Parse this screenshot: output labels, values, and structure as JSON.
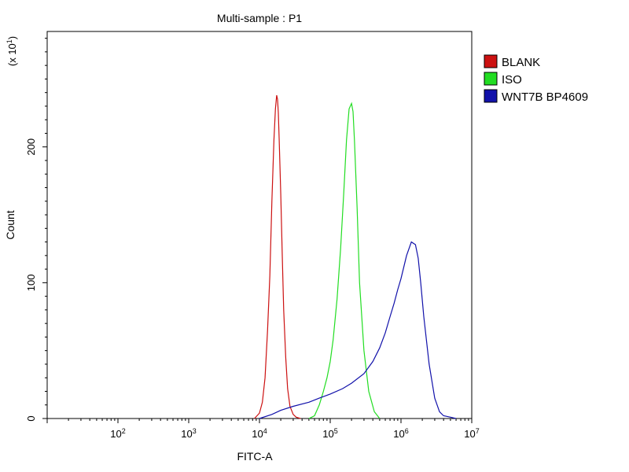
{
  "chart_data": {
    "type": "line",
    "title": "Multi-sample : P1",
    "xlabel": "FITC-A",
    "ylabel": "Count",
    "y_multiplier_label": "(x 10",
    "y_multiplier_exp": "1",
    "y_multiplier_close": ")",
    "xscale": "log",
    "xlim": [
      10,
      10000000
    ],
    "ylim": [
      0,
      285
    ],
    "x_ticks": [
      {
        "base": "10",
        "exp": "2",
        "value": 100
      },
      {
        "base": "10",
        "exp": "3",
        "value": 1000
      },
      {
        "base": "10",
        "exp": "4",
        "value": 10000
      },
      {
        "base": "10",
        "exp": "5",
        "value": 100000
      },
      {
        "base": "10",
        "exp": "6",
        "value": 1000000
      },
      {
        "base": "10",
        "exp": "7",
        "value": 10000000
      }
    ],
    "y_ticks": [
      {
        "label": "0",
        "value": 0
      },
      {
        "label": "100",
        "value": 100
      },
      {
        "label": "200",
        "value": 200
      }
    ],
    "legend_position": "right",
    "series": [
      {
        "name": "BLANK",
        "color": "#cc1111",
        "x": [
          8500,
          10000,
          11000,
          12000,
          13000,
          14000,
          15000,
          16000,
          16800,
          17500,
          18000,
          18500,
          19000,
          20000,
          21000,
          22000,
          23500,
          25000,
          27000,
          30000,
          33000,
          38000
        ],
        "y": [
          0,
          4,
          12,
          30,
          65,
          105,
          160,
          205,
          228,
          238,
          235,
          225,
          205,
          165,
          120,
          80,
          45,
          22,
          9,
          3,
          1,
          0
        ]
      },
      {
        "name": "ISO",
        "color": "#22dd22",
        "x": [
          50000,
          60000,
          70000,
          80000,
          90000,
          100000,
          110000,
          125000,
          140000,
          155000,
          170000,
          185000,
          200000,
          210000,
          220000,
          240000,
          260000,
          300000,
          350000,
          420000,
          500000
        ],
        "y": [
          0,
          2,
          10,
          20,
          30,
          42,
          58,
          88,
          125,
          165,
          205,
          228,
          232,
          226,
          205,
          155,
          100,
          50,
          20,
          5,
          0
        ]
      },
      {
        "name": "WNT7B BP4609",
        "color": "#1111aa",
        "x": [
          10000,
          15000,
          20000,
          30000,
          50000,
          70000,
          100000,
          150000,
          200000,
          300000,
          400000,
          500000,
          600000,
          700000,
          800000,
          900000,
          1000000,
          1200000,
          1400000,
          1600000,
          1750000,
          1900000,
          2100000,
          2500000,
          3000000,
          3500000,
          4000000,
          5000000,
          6000000
        ],
        "y": [
          0,
          3,
          6,
          9,
          12,
          15,
          18,
          22,
          26,
          33,
          42,
          52,
          63,
          75,
          85,
          95,
          103,
          120,
          130,
          128,
          118,
          100,
          75,
          40,
          15,
          5,
          2,
          1,
          0
        ]
      }
    ]
  }
}
